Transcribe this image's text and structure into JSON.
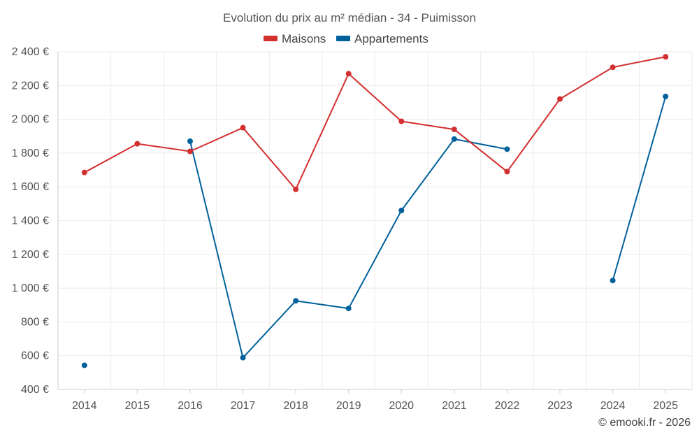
{
  "chart_data": {
    "type": "line",
    "title": "Evolution du prix au m² médian - 34 - Puimisson",
    "categories": [
      "2014",
      "2015",
      "2016",
      "2017",
      "2018",
      "2019",
      "2020",
      "2021",
      "2022",
      "2023",
      "2024",
      "2025"
    ],
    "series": [
      {
        "name": "Maisons",
        "color": "#d32f2f",
        "values": [
          1685,
          1855,
          1810,
          1950,
          1585,
          2270,
          1988,
          1940,
          1690,
          2120,
          2308,
          2370
        ]
      },
      {
        "name": "Appartements",
        "color": "#01619b",
        "values": [
          543,
          null,
          1870,
          588,
          925,
          880,
          1460,
          1883,
          1823,
          null,
          1045,
          2135
        ]
      }
    ],
    "ylim": [
      400,
      2400
    ],
    "yticks": [
      400,
      600,
      800,
      1000,
      1200,
      1400,
      1600,
      1800,
      2000,
      2200,
      2400
    ],
    "ytick_labels": [
      "400 €",
      "600 €",
      "800 €",
      "1 000 €",
      "1 200 €",
      "1 400 €",
      "1 600 €",
      "1 800 €",
      "2 000 €",
      "2 200 €",
      "2 400 €"
    ],
    "xlabel": "",
    "ylabel": "",
    "legend": "top-center",
    "grid": true
  },
  "credit": "© emooki.fr - 2026"
}
